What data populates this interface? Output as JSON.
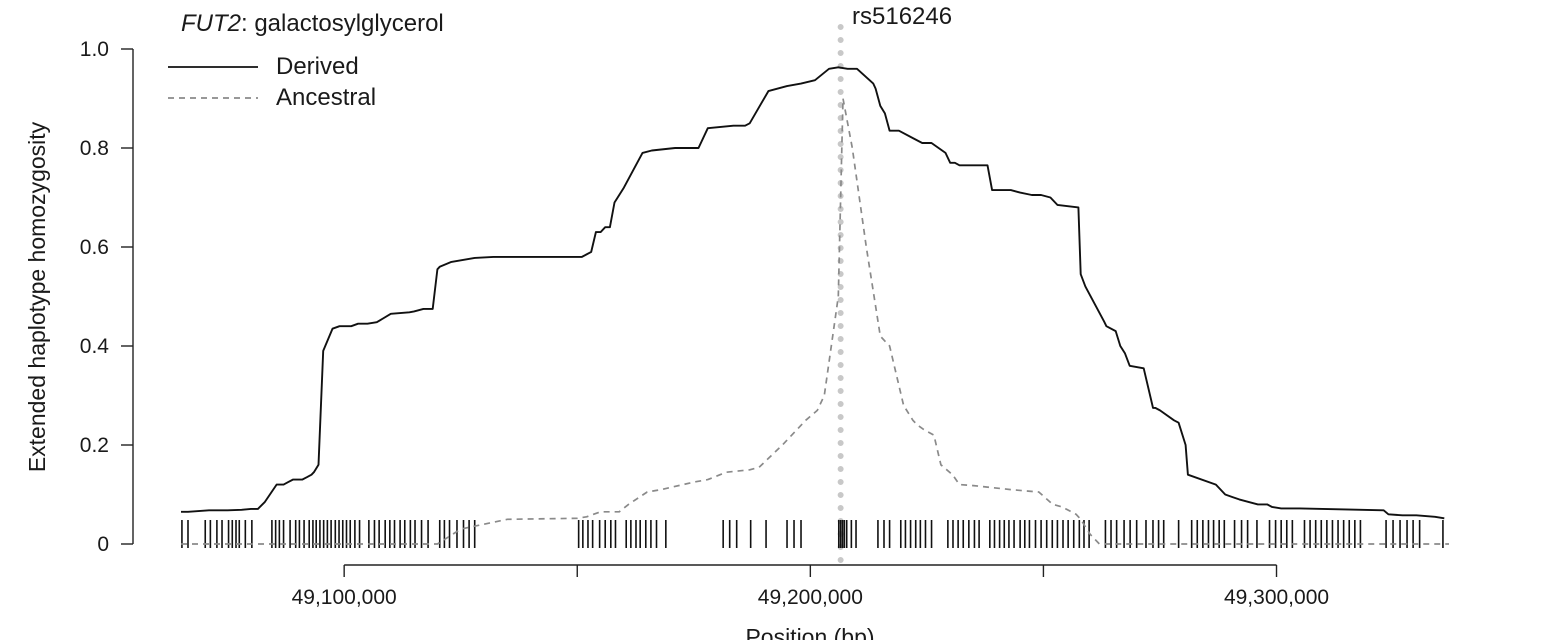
{
  "chart_data": {
    "type": "line",
    "title_gene": "FUT2",
    "title_rest": ": galactosylglycerol",
    "xlabel": "Position (bp)",
    "ylabel": "Extended haplotype homozygosity",
    "xlim": [
      49065000,
      49337000
    ],
    "ylim": [
      0,
      1.0
    ],
    "yticks": [
      0,
      0.2,
      0.4,
      0.6,
      0.8,
      1.0
    ],
    "ytick_labels": [
      "0",
      "0.2",
      "0.4",
      "0.6",
      "0.8",
      "1.0"
    ],
    "xticks": [
      49100000,
      49150000,
      49200000,
      49250000,
      49300000
    ],
    "xtick_labels": [
      "49,100,000",
      "",
      "49,200,000",
      "",
      "49,300,000"
    ],
    "legend": {
      "position": "top-left"
    },
    "annotation": {
      "label": "rs516246",
      "x": 49206500
    },
    "colors": {
      "derived": "#111111",
      "ancestral": "#8a8a8a",
      "marker": "#c8c8c8"
    },
    "series": [
      {
        "name": "Derived",
        "style": "solid",
        "x": [
          49065000,
          49066500,
          49071000,
          49075000,
          49078000,
          49080000,
          49081500,
          49083000,
          49085500,
          49087000,
          49088000,
          49089000,
          49091000,
          49092000,
          49093000,
          49093500,
          49094500,
          49095500,
          49097500,
          49099000,
          49101500,
          49103000,
          49105000,
          49107000,
          49110000,
          49114000,
          49115000,
          49117000,
          49119000,
          49120000,
          49120500,
          49123000,
          49128000,
          49132000,
          49139000,
          49147000,
          49151000,
          49152000,
          49153000,
          49154000,
          49155000,
          49156000,
          49157000,
          49158000,
          49160000,
          49164000,
          49166000,
          49171000,
          49173000,
          49176000,
          49178000,
          49183500,
          49184500,
          49186000,
          49187000,
          49191000,
          49195000,
          49198000,
          49201000,
          49204000,
          49206000,
          49208000,
          49210000,
          49213500,
          49214000,
          49215000,
          49216000,
          49217000,
          49219000,
          49222000,
          49224000,
          49226000,
          49229000,
          49230000,
          49231000,
          49232000,
          49238000,
          49239000,
          49243000,
          49245000,
          49247500,
          49249500,
          49251500,
          49253000,
          49257500,
          49258000,
          49259000,
          49263000,
          49263500,
          49265500,
          49266500,
          49267500,
          49268500,
          49271500,
          49273500,
          49274000,
          49275000,
          49278000,
          49279000,
          49280500,
          49281000,
          49287000,
          49289000,
          49290500,
          49292000,
          49294000,
          49296000,
          49298000,
          49299000,
          49301000,
          49305000,
          49323000,
          49324000,
          49327000,
          49330000,
          49334000,
          49336000
        ],
        "y": [
          0.065,
          0.065,
          0.068,
          0.068,
          0.069,
          0.071,
          0.071,
          0.085,
          0.12,
          0.12,
          0.125,
          0.13,
          0.13,
          0.135,
          0.14,
          0.145,
          0.16,
          0.39,
          0.435,
          0.44,
          0.44,
          0.445,
          0.445,
          0.448,
          0.465,
          0.468,
          0.47,
          0.475,
          0.475,
          0.555,
          0.56,
          0.57,
          0.578,
          0.58,
          0.58,
          0.58,
          0.58,
          0.585,
          0.59,
          0.63,
          0.63,
          0.64,
          0.64,
          0.69,
          0.72,
          0.79,
          0.795,
          0.8,
          0.8,
          0.8,
          0.84,
          0.845,
          0.845,
          0.845,
          0.85,
          0.915,
          0.925,
          0.93,
          0.937,
          0.96,
          0.963,
          0.96,
          0.96,
          0.93,
          0.92,
          0.885,
          0.87,
          0.835,
          0.835,
          0.82,
          0.81,
          0.81,
          0.79,
          0.77,
          0.77,
          0.765,
          0.765,
          0.715,
          0.715,
          0.71,
          0.705,
          0.705,
          0.7,
          0.685,
          0.68,
          0.545,
          0.52,
          0.45,
          0.44,
          0.43,
          0.4,
          0.385,
          0.36,
          0.355,
          0.275,
          0.275,
          0.27,
          0.25,
          0.245,
          0.2,
          0.14,
          0.12,
          0.1,
          0.095,
          0.09,
          0.085,
          0.08,
          0.08,
          0.075,
          0.072,
          0.072,
          0.068,
          0.06,
          0.058,
          0.058,
          0.055,
          0.052
        ]
      },
      {
        "name": "Ancestral",
        "style": "dashed",
        "x": [
          49065000,
          49120000,
          49125000,
          49135000,
          49150000,
          49152000,
          49155000,
          49159000,
          49161000,
          49165000,
          49168000,
          49175000,
          49178000,
          49182000,
          49187000,
          49189000,
          49194000,
          49199000,
          49201500,
          49203000,
          49206000,
          49207000,
          49209000,
          49212000,
          49215000,
          49216000,
          49217000,
          49220000,
          49222000,
          49223000,
          49224500,
          49226500,
          49228000,
          49230500,
          49232000,
          49235000,
          49238000,
          49243000,
          49249000,
          49252000,
          49254000,
          49257000,
          49258000,
          49260000,
          49262000,
          49290000,
          49337000
        ],
        "y": [
          0.0,
          0.0,
          0.03,
          0.05,
          0.052,
          0.055,
          0.065,
          0.065,
          0.08,
          0.105,
          0.11,
          0.125,
          0.13,
          0.145,
          0.15,
          0.155,
          0.2,
          0.25,
          0.27,
          0.3,
          0.5,
          0.9,
          0.8,
          0.6,
          0.42,
          0.41,
          0.4,
          0.28,
          0.25,
          0.24,
          0.23,
          0.22,
          0.16,
          0.14,
          0.12,
          0.118,
          0.115,
          0.11,
          0.105,
          0.08,
          0.075,
          0.06,
          0.05,
          0.02,
          0.0,
          0.0,
          0.0
        ]
      }
    ],
    "rug_positions": [
      49065200,
      49066500,
      49070200,
      49071300,
      49072700,
      49073800,
      49075200,
      49076000,
      49076800,
      49077500,
      49078800,
      49080200,
      49084500,
      49085300,
      49086100,
      49087000,
      49088400,
      49089600,
      49090400,
      49091400,
      49092500,
      49093300,
      49094000,
      49094800,
      49095600,
      49096400,
      49097200,
      49098100,
      49098900,
      49099700,
      49100500,
      49101300,
      49102300,
      49103300,
      49105300,
      49106500,
      49107500,
      49108800,
      49109800,
      49110800,
      49112000,
      49113000,
      49114200,
      49115200,
      49116600,
      49118000,
      49120500,
      49121500,
      49122600,
      49124200,
      49125600,
      49126800,
      49128000,
      49150300,
      49151200,
      49152300,
      49153300,
      49154800,
      49156000,
      49157200,
      49158200,
      49160500,
      49161500,
      49162600,
      49163500,
      49164700,
      49165800,
      49167000,
      49169000,
      49181300,
      49182700,
      49184200,
      49187200,
      49190500,
      49195000,
      49196500,
      49198000,
      49206100,
      49206500,
      49206900,
      49207300,
      49207800,
      49208800,
      49209800,
      49214500,
      49215800,
      49217000,
      49219400,
      49220400,
      49221500,
      49222600,
      49223600,
      49224700,
      49226000,
      49229500,
      49230600,
      49231700,
      49232800,
      49234000,
      49235200,
      49236200,
      49238500,
      49239500,
      49240600,
      49241600,
      49242600,
      49243700,
      49245000,
      49246000,
      49247000,
      49248300,
      49249500,
      49250700,
      49251900,
      49253000,
      49254200,
      49255300,
      49256500,
      49257700,
      49258700,
      49259800,
      49263300,
      49264500,
      49265700,
      49267300,
      49268600,
      49270000,
      49272000,
      49273500,
      49274700,
      49275800,
      49279000,
      49281800,
      49283000,
      49284200,
      49285400,
      49286500,
      49287700,
      49288800,
      49291000,
      49292500,
      49293800,
      49295800,
      49298500,
      49299800,
      49301000,
      49302200,
      49303400,
      49306000,
      49307200,
      49308400,
      49309600,
      49310800,
      49312000,
      49313200,
      49314400,
      49315600,
      49316800,
      49318000,
      49323500,
      49325000,
      49326500,
      49328000,
      49329300,
      49330700,
      49335700
    ]
  }
}
